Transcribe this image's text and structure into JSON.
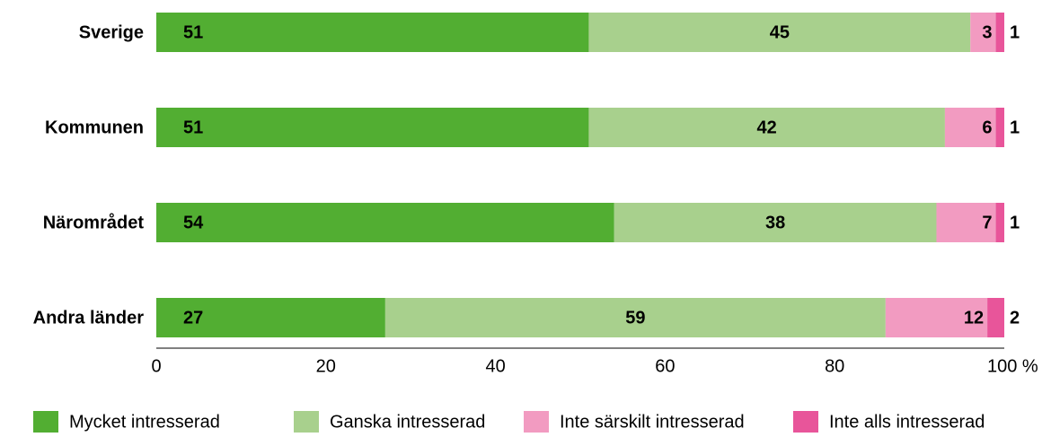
{
  "chart_data": {
    "type": "stacked-bar-horizontal",
    "categories": [
      "Sverige",
      "Kommunen",
      "Närområdet",
      "Andra länder"
    ],
    "series": [
      {
        "name": "Mycket intresserad",
        "color": "#52ae32",
        "values": [
          51,
          51,
          54,
          27
        ]
      },
      {
        "name": "Ganska intresserad",
        "color": "#a8d08d",
        "values": [
          45,
          42,
          38,
          59
        ]
      },
      {
        "name": "Inte särskilt intresserad",
        "color": "#f29bc1",
        "values": [
          3,
          6,
          7,
          12
        ]
      },
      {
        "name": "Inte alls intresserad",
        "color": "#e8559a",
        "values": [
          1,
          1,
          1,
          2
        ]
      }
    ],
    "xlim": [
      0,
      100
    ],
    "xticks": [
      0,
      20,
      40,
      60,
      80,
      {
        "value": 100,
        "label": "100 %"
      }
    ],
    "legend": "bottom"
  }
}
